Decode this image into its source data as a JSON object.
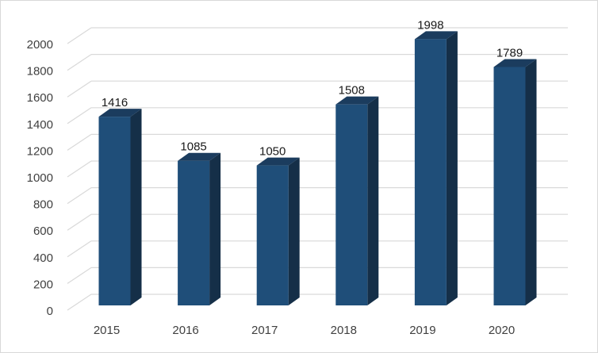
{
  "chart_data": {
    "type": "bar",
    "categories": [
      "2015",
      "2016",
      "2017",
      "2018",
      "2019",
      "2020"
    ],
    "values": [
      1416,
      1085,
      1050,
      1508,
      1998,
      1789
    ],
    "data_labels": [
      "1416",
      "1085",
      "1050",
      "1508",
      "1998",
      "1789"
    ],
    "yticks": [
      0,
      200,
      400,
      600,
      800,
      1000,
      1200,
      1400,
      1600,
      1800,
      2000
    ],
    "ylim": [
      0,
      2000
    ],
    "grid": true,
    "legend": "none",
    "style": "3d-column",
    "colors": {
      "front": "#1f4e79",
      "side": "#152f48",
      "top": "#1b3c5e",
      "grid": "#d9d9d9",
      "tick_text": "#404040",
      "label_text": "#1a1a1a"
    }
  }
}
